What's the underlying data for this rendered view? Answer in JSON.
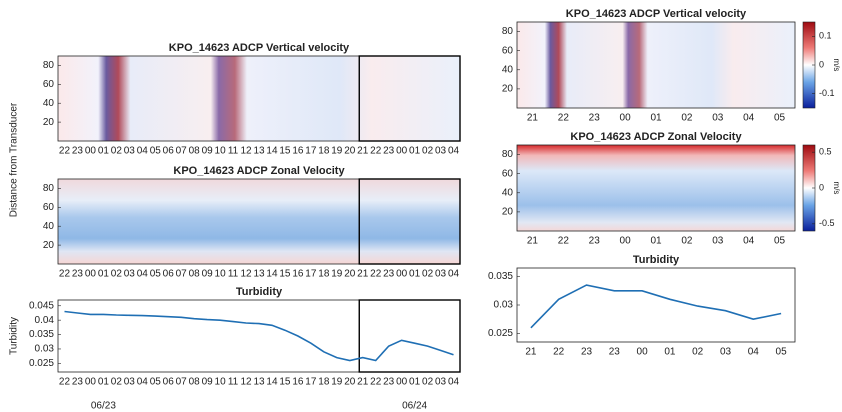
{
  "chart_data": [
    {
      "type": "heatmap",
      "title": "KPO_14623 ADCP Vertical velocity",
      "ylabel": "Distance from Transducer",
      "ylim": [
        0,
        90
      ],
      "yticks": [
        20,
        40,
        60,
        80
      ],
      "categories": [
        "22",
        "23",
        "00",
        "01",
        "02",
        "03",
        "04",
        "05",
        "06",
        "07",
        "08",
        "09",
        "10",
        "11",
        "12",
        "13",
        "14",
        "15",
        "16",
        "17",
        "18",
        "19",
        "20",
        "21",
        "22",
        "23",
        "00",
        "01",
        "02",
        "03",
        "04"
      ]
    },
    {
      "type": "heatmap",
      "title": "KPO_14623 ADCP Zonal Velocity",
      "ylim": [
        0,
        90
      ],
      "yticks": [
        20,
        40,
        60,
        80
      ],
      "categories": [
        "22",
        "23",
        "00",
        "01",
        "02",
        "03",
        "04",
        "05",
        "06",
        "07",
        "08",
        "09",
        "10",
        "11",
        "12",
        "13",
        "14",
        "15",
        "16",
        "17",
        "18",
        "19",
        "20",
        "21",
        "22",
        "23",
        "00",
        "01",
        "02",
        "03",
        "04"
      ]
    },
    {
      "type": "line",
      "title": "Turbidity",
      "ylabel": "Turbidity",
      "color": "#1f6fb4",
      "ylim": [
        0.022,
        0.047
      ],
      "yticks": [
        0.025,
        0.03,
        0.035,
        0.04,
        0.045
      ],
      "categories": [
        "22",
        "23",
        "00",
        "01",
        "02",
        "03",
        "04",
        "05",
        "06",
        "07",
        "08",
        "09",
        "10",
        "11",
        "12",
        "13",
        "14",
        "15",
        "16",
        "17",
        "18",
        "19",
        "20",
        "21",
        "22",
        "23",
        "00",
        "01",
        "02",
        "03",
        "04"
      ],
      "values": [
        0.043,
        0.0425,
        0.042,
        0.042,
        0.0418,
        0.0417,
        0.0416,
        0.0414,
        0.0412,
        0.041,
        0.0405,
        0.0402,
        0.04,
        0.0395,
        0.039,
        0.0388,
        0.0382,
        0.0365,
        0.0345,
        0.032,
        0.029,
        0.027,
        0.026,
        0.027,
        0.026,
        0.031,
        0.033,
        0.032,
        0.031,
        0.0295,
        0.028
      ],
      "dates": [
        "06/23",
        "06/24"
      ]
    },
    {
      "type": "heatmap",
      "title": "KPO_14623 ADCP Vertical velocity",
      "ylim": [
        0,
        90
      ],
      "yticks": [
        20,
        40,
        60,
        80
      ],
      "categories": [
        "21",
        "22",
        "23",
        "00",
        "01",
        "02",
        "03",
        "04",
        "05"
      ],
      "colorbar": {
        "clim": [
          -0.15,
          0.15
        ],
        "ticks": [
          -0.1,
          0,
          0.1
        ],
        "label": "m/s"
      }
    },
    {
      "type": "heatmap",
      "title": "KPO_14623 ADCP Zonal Velocity",
      "ylim": [
        0,
        90
      ],
      "yticks": [
        20,
        40,
        60,
        80
      ],
      "categories": [
        "21",
        "22",
        "23",
        "00",
        "01",
        "02",
        "03",
        "04",
        "05"
      ],
      "colorbar": {
        "clim": [
          -0.6,
          0.6
        ],
        "ticks": [
          -0.5,
          0,
          0.5
        ],
        "label": "m/s"
      }
    },
    {
      "type": "line",
      "title": "Turbidity",
      "color": "#1f6fb4",
      "ylim": [
        0.0235,
        0.0365
      ],
      "yticks": [
        0.025,
        0.03,
        0.035
      ],
      "categories": [
        "21",
        "22",
        "23",
        "23",
        "00",
        "01",
        "02",
        "03",
        "04",
        "05"
      ],
      "values": [
        0.026,
        0.031,
        0.0335,
        0.0325,
        0.0325,
        0.031,
        0.0298,
        0.029,
        0.0275,
        0.0285
      ]
    }
  ]
}
